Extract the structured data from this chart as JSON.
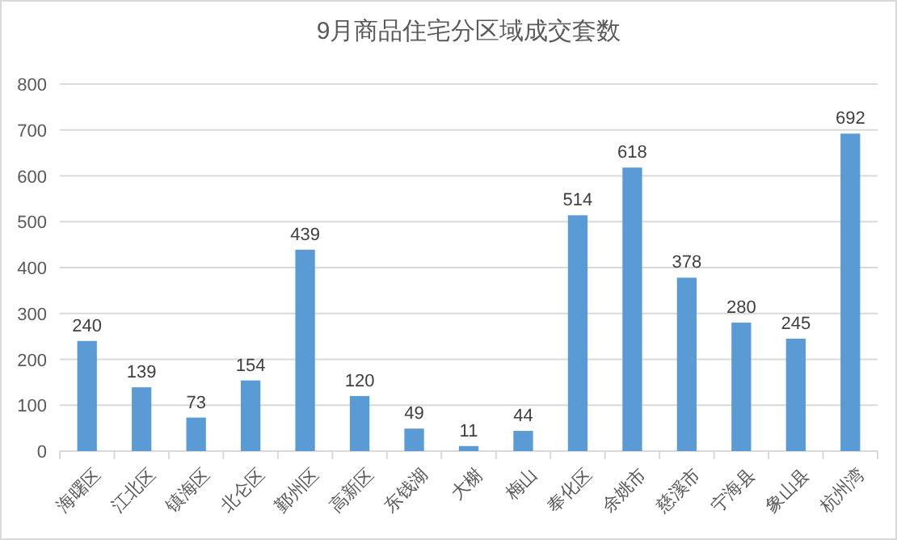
{
  "chart_data": {
    "type": "bar",
    "title": "9月商品住宅分区域成交套数",
    "categories": [
      "海曙区",
      "江北区",
      "镇海区",
      "北仑区",
      "鄞州区",
      "高新区",
      "东钱湖",
      "大榭",
      "梅山",
      "奉化区",
      "余姚市",
      "慈溪市",
      "宁海县",
      "象山县",
      "杭州湾"
    ],
    "values": [
      240,
      139,
      73,
      154,
      439,
      120,
      49,
      11,
      44,
      514,
      618,
      378,
      280,
      245,
      692
    ],
    "color": "#5b9bd5",
    "data_labels": true,
    "ylim": [
      0,
      800
    ],
    "yticks": [
      0,
      100,
      200,
      300,
      400,
      500,
      600,
      700,
      800
    ],
    "grid": "y"
  }
}
